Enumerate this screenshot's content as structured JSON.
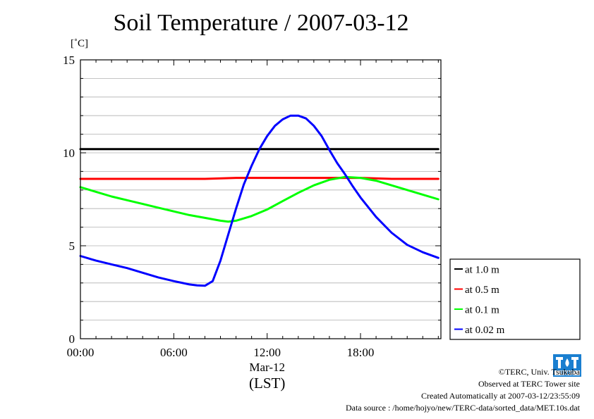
{
  "chart_data": {
    "type": "line",
    "title": "Soil Temperature / 2007-03-12",
    "unit_label": "[˚C]",
    "xlabel_date": "Mar-12",
    "xlabel": "(LST)",
    "x_ticks": [
      "00:00",
      "06:00",
      "12:00",
      "18:00"
    ],
    "x_tick_hours": [
      0,
      6,
      12,
      18
    ],
    "xlim_hours": [
      0,
      23.167
    ],
    "y_ticks": [
      "0",
      "5",
      "10",
      "15"
    ],
    "y_tick_values": [
      0,
      5,
      10,
      15
    ],
    "ylim": [
      0,
      15
    ],
    "grid": true,
    "legend_position": "bottom-right, outside",
    "series": [
      {
        "name": "at 1.0 m",
        "color": "#000000",
        "x_hours": [
          0,
          2,
          4,
          6,
          8,
          10,
          12,
          14,
          16,
          18,
          20,
          22,
          23
        ],
        "values": [
          10.2,
          10.2,
          10.2,
          10.2,
          10.2,
          10.2,
          10.2,
          10.2,
          10.2,
          10.2,
          10.2,
          10.2,
          10.2
        ]
      },
      {
        "name": "at 0.5 m",
        "color": "#ff0000",
        "x_hours": [
          0,
          2,
          4,
          6,
          8,
          10,
          12,
          14,
          16,
          18,
          20,
          22,
          23
        ],
        "values": [
          8.6,
          8.6,
          8.6,
          8.6,
          8.6,
          8.65,
          8.65,
          8.65,
          8.65,
          8.65,
          8.6,
          8.6,
          8.6
        ]
      },
      {
        "name": "at 0.1 m",
        "color": "#00ff00",
        "x_hours": [
          0,
          1,
          2,
          3,
          4,
          5,
          6,
          7,
          8,
          9,
          9.5,
          10,
          11,
          12,
          13,
          14,
          15,
          16,
          17,
          18,
          19,
          20,
          21,
          22,
          23
        ],
        "values": [
          8.15,
          7.9,
          7.65,
          7.45,
          7.25,
          7.05,
          6.85,
          6.65,
          6.5,
          6.35,
          6.3,
          6.35,
          6.6,
          6.95,
          7.4,
          7.85,
          8.25,
          8.55,
          8.7,
          8.65,
          8.5,
          8.25,
          8.0,
          7.75,
          7.5
        ]
      },
      {
        "name": "at 0.02 m",
        "color": "#0000ff",
        "x_hours": [
          0,
          1,
          2,
          3,
          4,
          5,
          6,
          7,
          7.5,
          8,
          8.5,
          9,
          9.5,
          10,
          10.5,
          11,
          11.5,
          12,
          12.5,
          13,
          13.5,
          14,
          14.5,
          15,
          15.5,
          16,
          16.5,
          17,
          17.5,
          18,
          19,
          20,
          21,
          22,
          23
        ],
        "values": [
          4.45,
          4.2,
          4.0,
          3.8,
          3.55,
          3.3,
          3.1,
          2.92,
          2.87,
          2.85,
          3.1,
          4.2,
          5.6,
          7.0,
          8.3,
          9.3,
          10.2,
          10.9,
          11.45,
          11.8,
          12.0,
          12.0,
          11.85,
          11.45,
          10.9,
          10.15,
          9.45,
          8.85,
          8.2,
          7.6,
          6.55,
          5.7,
          5.05,
          4.65,
          4.35
        ]
      }
    ]
  },
  "footer": {
    "copyright": "©TERC, Univ. Tsukuba",
    "observed": "Observed at TERC Tower site",
    "created": "Created Automatically at 2007-03-12/23:55:09",
    "source": "Data source : /home/hojyo/new/TERC-data/sorted_data/MET.10s.dat",
    "logo_text": "TERC"
  }
}
